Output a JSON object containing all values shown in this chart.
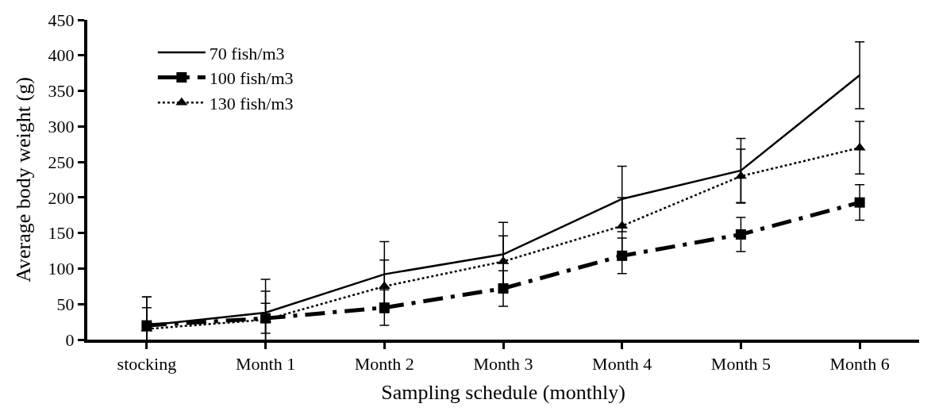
{
  "chart_data": {
    "type": "line",
    "xlabel": "Sampling schedule (monthly)",
    "ylabel": "Average body weight (g)",
    "categories": [
      "stocking",
      "Month 1",
      "Month 2",
      "Month 3",
      "Month 4",
      "Month 5",
      "Month 6"
    ],
    "series": [
      {
        "name": "70 fish/m3",
        "color": "#000000",
        "line_style": "solid",
        "marker": "none",
        "values": [
          20,
          38,
          92,
          120,
          198,
          238,
          372
        ],
        "errors": [
          40,
          47,
          46,
          45,
          46,
          45,
          47
        ]
      },
      {
        "name": "100 fish/m3",
        "color": "#000000",
        "line_style": "dashdot",
        "marker": "square",
        "values": [
          20,
          30,
          45,
          72,
          118,
          148,
          193
        ],
        "errors": [
          25,
          21,
          25,
          25,
          25,
          24,
          25
        ]
      },
      {
        "name": "130 fish/m3",
        "color": "#000000",
        "line_style": "dotted",
        "marker": "triangle",
        "values": [
          15,
          28,
          75,
          110,
          160,
          230,
          270
        ],
        "errors": [
          45,
          40,
          37,
          36,
          40,
          38,
          37
        ]
      }
    ],
    "ylim": [
      0,
      450
    ],
    "yticks": [
      0,
      50,
      100,
      150,
      200,
      250,
      300,
      350,
      400,
      450
    ],
    "legend": "top left"
  }
}
